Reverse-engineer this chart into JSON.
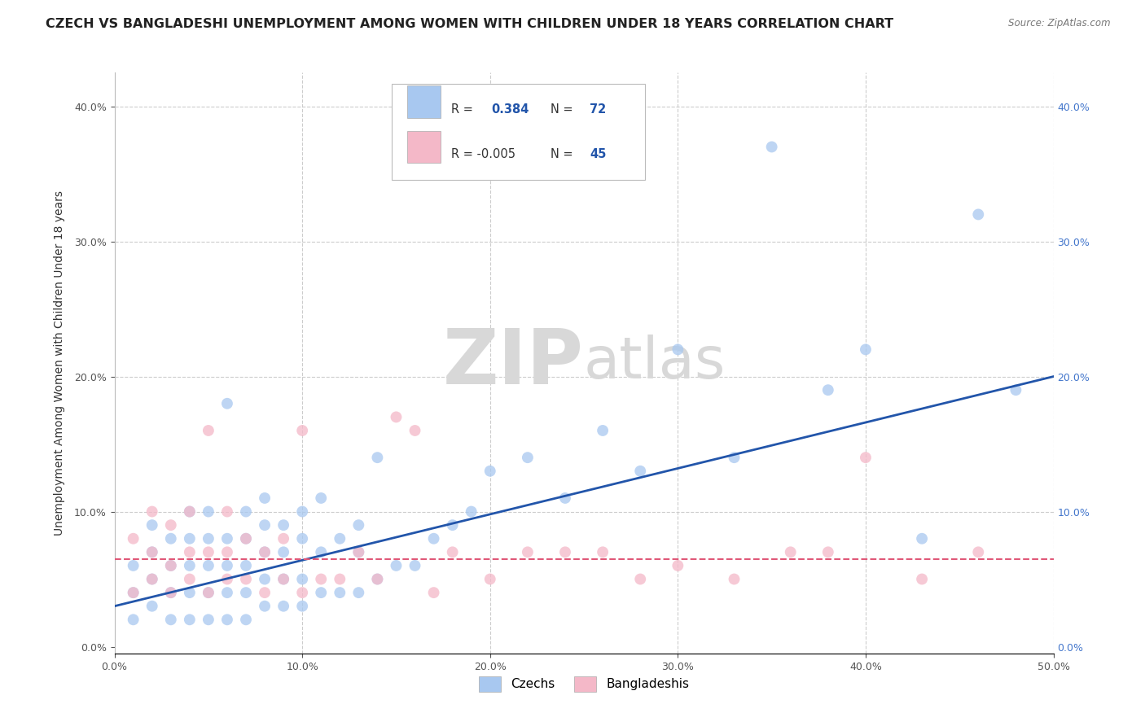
{
  "title": "CZECH VS BANGLADESHI UNEMPLOYMENT AMONG WOMEN WITH CHILDREN UNDER 18 YEARS CORRELATION CHART",
  "source": "Source: ZipAtlas.com",
  "ylabel": "Unemployment Among Women with Children Under 18 years",
  "xmin": 0.0,
  "xmax": 0.5,
  "ymin": -0.005,
  "ymax": 0.425,
  "czech_R": 0.384,
  "czech_N": 72,
  "bangladeshi_R": -0.005,
  "bangladeshi_N": 45,
  "czech_color": "#a8c8f0",
  "bangladeshi_color": "#f4b8c8",
  "czech_line_color": "#2255aa",
  "bangladeshi_line_color": "#e05878",
  "legend_label_czech": "Czechs",
  "legend_label_bangladeshi": "Bangladeshis",
  "background_color": "#ffffff",
  "grid_color": "#cccccc",
  "watermark_color": "#d8d8d8",
  "title_fontsize": 11.5,
  "axis_label_fontsize": 10,
  "tick_fontsize": 9,
  "czech_line_start_y": 0.03,
  "czech_line_end_y": 0.2,
  "bangladeshi_line_y": 0.065,
  "czech_x": [
    0.01,
    0.01,
    0.01,
    0.02,
    0.02,
    0.02,
    0.02,
    0.03,
    0.03,
    0.03,
    0.03,
    0.04,
    0.04,
    0.04,
    0.04,
    0.04,
    0.05,
    0.05,
    0.05,
    0.05,
    0.05,
    0.06,
    0.06,
    0.06,
    0.06,
    0.06,
    0.07,
    0.07,
    0.07,
    0.07,
    0.07,
    0.08,
    0.08,
    0.08,
    0.08,
    0.08,
    0.09,
    0.09,
    0.09,
    0.09,
    0.1,
    0.1,
    0.1,
    0.1,
    0.11,
    0.11,
    0.11,
    0.12,
    0.12,
    0.13,
    0.13,
    0.13,
    0.14,
    0.14,
    0.15,
    0.16,
    0.17,
    0.18,
    0.19,
    0.2,
    0.22,
    0.24,
    0.26,
    0.28,
    0.3,
    0.33,
    0.35,
    0.38,
    0.4,
    0.43,
    0.46,
    0.48
  ],
  "czech_y": [
    0.02,
    0.04,
    0.06,
    0.03,
    0.05,
    0.07,
    0.09,
    0.02,
    0.04,
    0.06,
    0.08,
    0.02,
    0.04,
    0.06,
    0.08,
    0.1,
    0.02,
    0.04,
    0.06,
    0.08,
    0.1,
    0.02,
    0.04,
    0.06,
    0.08,
    0.18,
    0.02,
    0.04,
    0.06,
    0.08,
    0.1,
    0.03,
    0.05,
    0.07,
    0.09,
    0.11,
    0.03,
    0.05,
    0.07,
    0.09,
    0.03,
    0.05,
    0.08,
    0.1,
    0.04,
    0.07,
    0.11,
    0.04,
    0.08,
    0.04,
    0.07,
    0.09,
    0.05,
    0.14,
    0.06,
    0.06,
    0.08,
    0.09,
    0.1,
    0.13,
    0.14,
    0.11,
    0.16,
    0.13,
    0.22,
    0.14,
    0.37,
    0.19,
    0.22,
    0.08,
    0.32,
    0.19
  ],
  "bangladeshi_x": [
    0.01,
    0.01,
    0.02,
    0.02,
    0.02,
    0.03,
    0.03,
    0.03,
    0.04,
    0.04,
    0.04,
    0.05,
    0.05,
    0.05,
    0.06,
    0.06,
    0.06,
    0.07,
    0.07,
    0.08,
    0.08,
    0.09,
    0.09,
    0.1,
    0.1,
    0.11,
    0.12,
    0.13,
    0.14,
    0.15,
    0.16,
    0.17,
    0.18,
    0.2,
    0.22,
    0.24,
    0.26,
    0.28,
    0.3,
    0.33,
    0.36,
    0.38,
    0.4,
    0.43,
    0.46
  ],
  "bangladeshi_y": [
    0.04,
    0.08,
    0.05,
    0.07,
    0.1,
    0.04,
    0.06,
    0.09,
    0.05,
    0.07,
    0.1,
    0.04,
    0.07,
    0.16,
    0.05,
    0.07,
    0.1,
    0.05,
    0.08,
    0.04,
    0.07,
    0.05,
    0.08,
    0.04,
    0.16,
    0.05,
    0.05,
    0.07,
    0.05,
    0.17,
    0.16,
    0.04,
    0.07,
    0.05,
    0.07,
    0.07,
    0.07,
    0.05,
    0.06,
    0.05,
    0.07,
    0.07,
    0.14,
    0.05,
    0.07
  ]
}
